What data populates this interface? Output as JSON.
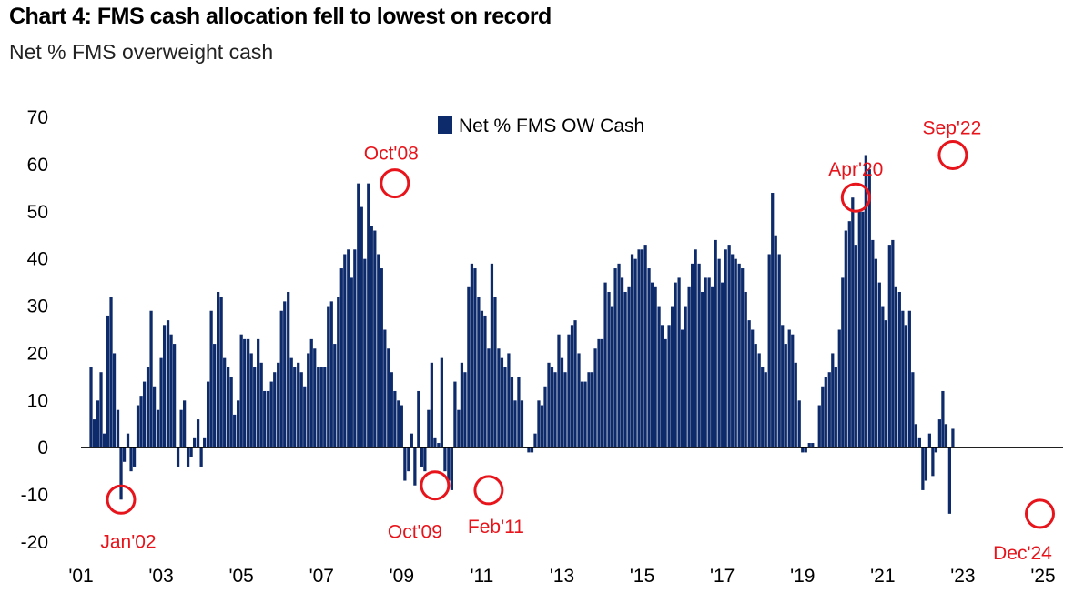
{
  "title": "Chart 4: FMS cash allocation fell to lowest on record",
  "subtitle": "Net % FMS overweight cash",
  "chart_data": {
    "type": "bar",
    "legend": "Net % FMS OW Cash",
    "legend_position": "top-center",
    "grid": false,
    "ylim": [
      -20,
      70
    ],
    "yticks": [
      70,
      60,
      50,
      40,
      30,
      20,
      10,
      0,
      -10,
      -20
    ],
    "xlim": [
      2001.0,
      2025.0
    ],
    "xticks": [
      {
        "label": "'01",
        "x": 2001
      },
      {
        "label": "'03",
        "x": 2003
      },
      {
        "label": "'05",
        "x": 2005
      },
      {
        "label": "'07",
        "x": 2007
      },
      {
        "label": "'09",
        "x": 2009
      },
      {
        "label": "'11",
        "x": 2011
      },
      {
        "label": "'13",
        "x": 2013
      },
      {
        "label": "'15",
        "x": 2015
      },
      {
        "label": "'17",
        "x": 2017
      },
      {
        "label": "'19",
        "x": 2019
      },
      {
        "label": "'21",
        "x": 2021
      },
      {
        "label": "'23",
        "x": 2023
      },
      {
        "label": "'25",
        "x": 2025
      }
    ],
    "series": [
      {
        "name": "Net % FMS OW Cash",
        "color": "#0d2a6b",
        "points": [
          [
            2001.25,
            17
          ],
          [
            2001.33,
            6
          ],
          [
            2001.42,
            10
          ],
          [
            2001.5,
            16
          ],
          [
            2001.58,
            3
          ],
          [
            2001.67,
            28
          ],
          [
            2001.75,
            32
          ],
          [
            2001.83,
            20
          ],
          [
            2001.92,
            8
          ],
          [
            2002.0,
            -11
          ],
          [
            2002.08,
            -3
          ],
          [
            2002.17,
            3
          ],
          [
            2002.25,
            -5
          ],
          [
            2002.33,
            -4
          ],
          [
            2002.42,
            9
          ],
          [
            2002.5,
            11
          ],
          [
            2002.58,
            14
          ],
          [
            2002.67,
            17
          ],
          [
            2002.75,
            29
          ],
          [
            2002.83,
            13
          ],
          [
            2002.92,
            8
          ],
          [
            2003.0,
            19
          ],
          [
            2003.08,
            26
          ],
          [
            2003.17,
            27
          ],
          [
            2003.25,
            24
          ],
          [
            2003.33,
            22
          ],
          [
            2003.42,
            -4
          ],
          [
            2003.5,
            8
          ],
          [
            2003.58,
            10
          ],
          [
            2003.67,
            -4
          ],
          [
            2003.75,
            -2
          ],
          [
            2003.83,
            2
          ],
          [
            2003.92,
            6
          ],
          [
            2004.0,
            -4
          ],
          [
            2004.08,
            2
          ],
          [
            2004.17,
            14
          ],
          [
            2004.25,
            29
          ],
          [
            2004.33,
            22
          ],
          [
            2004.42,
            33
          ],
          [
            2004.5,
            32
          ],
          [
            2004.58,
            19
          ],
          [
            2004.67,
            17
          ],
          [
            2004.75,
            15
          ],
          [
            2004.83,
            7
          ],
          [
            2004.92,
            10
          ],
          [
            2005.0,
            24
          ],
          [
            2005.08,
            23
          ],
          [
            2005.17,
            23
          ],
          [
            2005.25,
            20
          ],
          [
            2005.33,
            17
          ],
          [
            2005.42,
            23
          ],
          [
            2005.5,
            18
          ],
          [
            2005.58,
            12
          ],
          [
            2005.67,
            12
          ],
          [
            2005.75,
            14
          ],
          [
            2005.83,
            16
          ],
          [
            2005.92,
            18
          ],
          [
            2006.0,
            29
          ],
          [
            2006.08,
            31
          ],
          [
            2006.17,
            33
          ],
          [
            2006.25,
            19
          ],
          [
            2006.33,
            17
          ],
          [
            2006.42,
            18
          ],
          [
            2006.5,
            16
          ],
          [
            2006.58,
            13
          ],
          [
            2006.67,
            20
          ],
          [
            2006.75,
            23
          ],
          [
            2006.83,
            21
          ],
          [
            2006.92,
            17
          ],
          [
            2007.0,
            17
          ],
          [
            2007.08,
            17
          ],
          [
            2007.17,
            30
          ],
          [
            2007.25,
            31
          ],
          [
            2007.33,
            22
          ],
          [
            2007.42,
            32
          ],
          [
            2007.5,
            38
          ],
          [
            2007.58,
            41
          ],
          [
            2007.67,
            42
          ],
          [
            2007.75,
            36
          ],
          [
            2007.83,
            42
          ],
          [
            2007.92,
            56
          ],
          [
            2008.0,
            51
          ],
          [
            2008.08,
            40
          ],
          [
            2008.17,
            56
          ],
          [
            2008.25,
            47
          ],
          [
            2008.33,
            46
          ],
          [
            2008.42,
            41
          ],
          [
            2008.5,
            38
          ],
          [
            2008.58,
            25
          ],
          [
            2008.67,
            21
          ],
          [
            2008.75,
            16
          ],
          [
            2008.83,
            12
          ],
          [
            2008.92,
            10
          ],
          [
            2009.0,
            9
          ],
          [
            2009.08,
            -7
          ],
          [
            2009.17,
            -5
          ],
          [
            2009.25,
            3
          ],
          [
            2009.33,
            -8
          ],
          [
            2009.42,
            12
          ],
          [
            2009.5,
            -4
          ],
          [
            2009.58,
            -5
          ],
          [
            2009.67,
            8
          ],
          [
            2009.75,
            18
          ],
          [
            2009.83,
            2
          ],
          [
            2009.92,
            1
          ],
          [
            2010.0,
            19
          ],
          [
            2010.08,
            -5
          ],
          [
            2010.17,
            -7
          ],
          [
            2010.25,
            -9
          ],
          [
            2010.33,
            14
          ],
          [
            2010.42,
            8
          ],
          [
            2010.5,
            18
          ],
          [
            2010.58,
            16
          ],
          [
            2010.67,
            34
          ],
          [
            2010.75,
            39
          ],
          [
            2010.83,
            38
          ],
          [
            2010.92,
            32
          ],
          [
            2011.0,
            29
          ],
          [
            2011.08,
            28
          ],
          [
            2011.17,
            21
          ],
          [
            2011.25,
            39
          ],
          [
            2011.33,
            32
          ],
          [
            2011.42,
            21
          ],
          [
            2011.5,
            19
          ],
          [
            2011.58,
            17
          ],
          [
            2011.67,
            20
          ],
          [
            2011.75,
            15
          ],
          [
            2011.83,
            10
          ],
          [
            2011.92,
            15
          ],
          [
            2012.0,
            10
          ],
          [
            2012.08,
            0
          ],
          [
            2012.17,
            -1
          ],
          [
            2012.25,
            -1
          ],
          [
            2012.33,
            3
          ],
          [
            2012.42,
            10
          ],
          [
            2012.5,
            9
          ],
          [
            2012.58,
            13
          ],
          [
            2012.67,
            18
          ],
          [
            2012.75,
            17
          ],
          [
            2012.83,
            16
          ],
          [
            2012.92,
            24
          ],
          [
            2013.0,
            19
          ],
          [
            2013.08,
            16
          ],
          [
            2013.17,
            24
          ],
          [
            2013.25,
            26
          ],
          [
            2013.33,
            27
          ],
          [
            2013.42,
            20
          ],
          [
            2013.5,
            14
          ],
          [
            2013.58,
            14
          ],
          [
            2013.67,
            16
          ],
          [
            2013.75,
            16
          ],
          [
            2013.83,
            21
          ],
          [
            2013.92,
            23
          ],
          [
            2014.0,
            23
          ],
          [
            2014.08,
            35
          ],
          [
            2014.17,
            33
          ],
          [
            2014.25,
            30
          ],
          [
            2014.33,
            38
          ],
          [
            2014.42,
            39
          ],
          [
            2014.5,
            36
          ],
          [
            2014.58,
            33
          ],
          [
            2014.67,
            34
          ],
          [
            2014.75,
            41
          ],
          [
            2014.83,
            40
          ],
          [
            2014.92,
            42
          ],
          [
            2015.0,
            42
          ],
          [
            2015.08,
            43
          ],
          [
            2015.17,
            38
          ],
          [
            2015.25,
            35
          ],
          [
            2015.33,
            34
          ],
          [
            2015.42,
            30
          ],
          [
            2015.5,
            26
          ],
          [
            2015.58,
            23
          ],
          [
            2015.67,
            26
          ],
          [
            2015.75,
            30
          ],
          [
            2015.83,
            35
          ],
          [
            2015.92,
            36
          ],
          [
            2016.0,
            25
          ],
          [
            2016.08,
            30
          ],
          [
            2016.17,
            34
          ],
          [
            2016.25,
            39
          ],
          [
            2016.33,
            42
          ],
          [
            2016.42,
            39
          ],
          [
            2016.5,
            33
          ],
          [
            2016.58,
            36
          ],
          [
            2016.67,
            36
          ],
          [
            2016.75,
            34
          ],
          [
            2016.83,
            44
          ],
          [
            2016.92,
            40
          ],
          [
            2017.0,
            35
          ],
          [
            2017.08,
            42
          ],
          [
            2017.17,
            43
          ],
          [
            2017.25,
            41
          ],
          [
            2017.33,
            40
          ],
          [
            2017.42,
            39
          ],
          [
            2017.5,
            38
          ],
          [
            2017.58,
            33
          ],
          [
            2017.67,
            27
          ],
          [
            2017.75,
            25
          ],
          [
            2017.83,
            22
          ],
          [
            2017.92,
            20
          ],
          [
            2018.0,
            17
          ],
          [
            2018.08,
            16
          ],
          [
            2018.17,
            41
          ],
          [
            2018.25,
            54
          ],
          [
            2018.33,
            45
          ],
          [
            2018.42,
            41
          ],
          [
            2018.5,
            26
          ],
          [
            2018.58,
            22
          ],
          [
            2018.67,
            25
          ],
          [
            2018.75,
            24
          ],
          [
            2018.83,
            18
          ],
          [
            2018.92,
            10
          ],
          [
            2019.0,
            -1
          ],
          [
            2019.08,
            -1
          ],
          [
            2019.17,
            1
          ],
          [
            2019.25,
            1
          ],
          [
            2019.33,
            0
          ],
          [
            2019.42,
            9
          ],
          [
            2019.5,
            13
          ],
          [
            2019.58,
            15
          ],
          [
            2019.67,
            16
          ],
          [
            2019.75,
            20
          ],
          [
            2019.83,
            17
          ],
          [
            2019.92,
            25
          ],
          [
            2020.0,
            36
          ],
          [
            2020.08,
            46
          ],
          [
            2020.17,
            48
          ],
          [
            2020.25,
            53
          ],
          [
            2020.33,
            43
          ],
          [
            2020.42,
            50
          ],
          [
            2020.5,
            50
          ],
          [
            2020.58,
            62
          ],
          [
            2020.67,
            59
          ],
          [
            2020.75,
            44
          ],
          [
            2020.83,
            40
          ],
          [
            2020.92,
            35
          ],
          [
            2021.0,
            30
          ],
          [
            2021.08,
            27
          ],
          [
            2021.17,
            43
          ],
          [
            2021.25,
            44
          ],
          [
            2021.33,
            34
          ],
          [
            2021.42,
            33
          ],
          [
            2021.5,
            29
          ],
          [
            2021.58,
            26
          ],
          [
            2021.67,
            29
          ],
          [
            2021.75,
            16
          ],
          [
            2021.83,
            5
          ],
          [
            2021.92,
            2
          ],
          [
            2022.0,
            -9
          ],
          [
            2022.08,
            -7
          ],
          [
            2022.17,
            3
          ],
          [
            2022.25,
            -6
          ],
          [
            2022.33,
            -1
          ],
          [
            2022.42,
            6
          ],
          [
            2022.5,
            12
          ],
          [
            2022.58,
            5
          ],
          [
            2022.67,
            -14
          ],
          [
            2022.75,
            4
          ]
        ]
      }
    ],
    "annotations": [
      {
        "label": "Jan'02",
        "x": 2002.0,
        "y": -11
      },
      {
        "label": "Oct'08",
        "x": 2008.83,
        "y": 56
      },
      {
        "label": "Oct'09",
        "x": 2009.83,
        "y": -8
      },
      {
        "label": "Feb'11",
        "x": 2011.17,
        "y": -9
      },
      {
        "label": "Apr'20",
        "x": 2020.33,
        "y": 53
      },
      {
        "label": "Sep'22",
        "x": 2022.75,
        "y": 62
      },
      {
        "label": "Dec'24",
        "x": 2024.92,
        "y": -14
      }
    ]
  }
}
